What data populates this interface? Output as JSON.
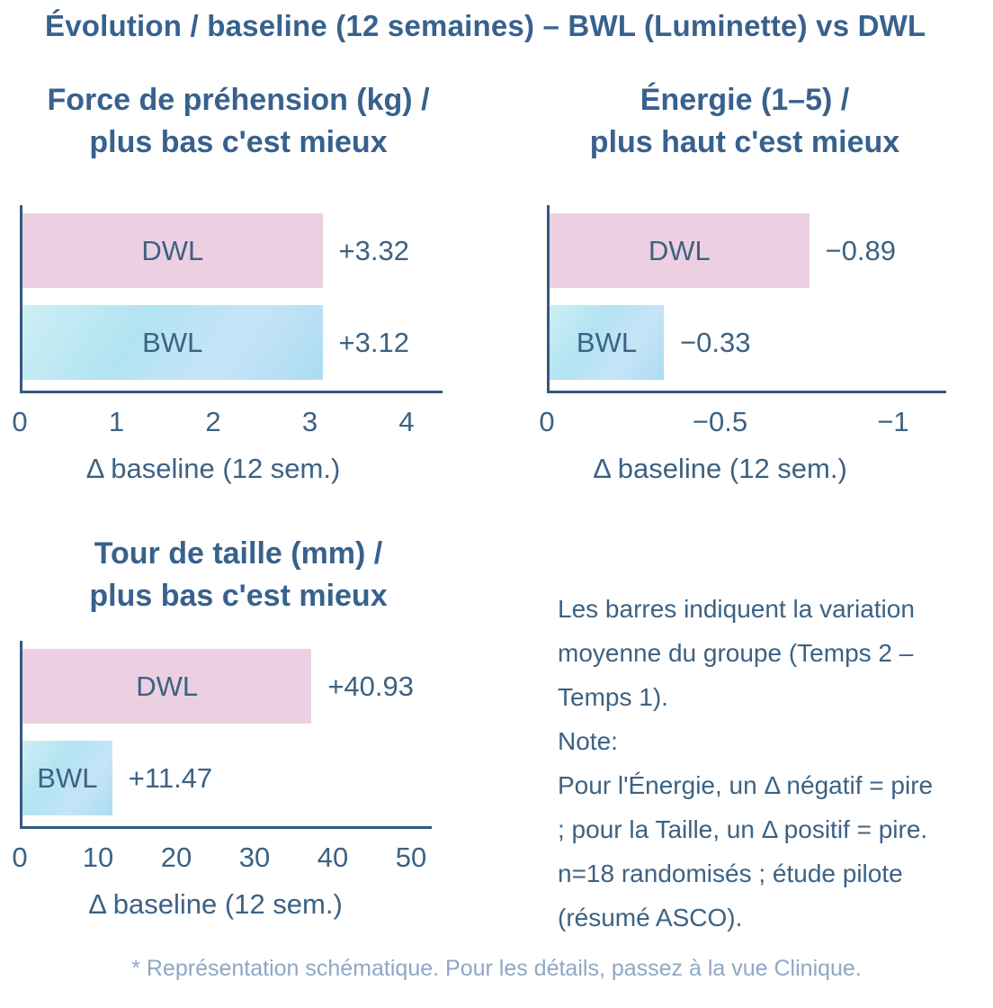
{
  "page": {
    "title": "Évolution / baseline (12 semaines) – BWL (Luminette) vs DWL",
    "footnote": "* Représentation schématique. Pour les détails, passez à la vue Clinique."
  },
  "colors": {
    "text": "#3c6283",
    "title": "#38618d",
    "axis": "#35597e",
    "footnote": "#8fa7c5",
    "dwl_bar": "#ecd0e2",
    "bwl_a": "#cdeff5",
    "bwl_b": "#b2e3f1",
    "bwl_c": "#c6e4f7",
    "bwl_d": "#abdcf2"
  },
  "notes": {
    "lines": [
      "Les barres indiquent la variation",
      "moyenne du groupe (Temps 2 –",
      "Temps 1).",
      "Note:",
      "Pour l'Énergie, un Δ négatif = pire",
      "; pour la Taille, un Δ positif = pire.",
      "n=18 randomisés ; étude pilote",
      "(résumé ASCO)."
    ]
  },
  "chart_data": [
    {
      "type": "bar",
      "orientation": "horizontal",
      "title_line1": "Force de préhension (kg) /",
      "title_line2": "plus bas c'est mieux",
      "categories": [
        "DWL",
        "BWL"
      ],
      "values": [
        3.32,
        3.12
      ],
      "value_labels": [
        "+3.32",
        "+3.12"
      ],
      "series_colors": [
        "#ecd0e2",
        "#b2e3f1"
      ],
      "xlim": [
        0,
        4
      ],
      "xticks": [
        "0",
        "1",
        "2",
        "3",
        "4"
      ],
      "xlabel": "Δ baseline (12 sem.)",
      "grid": false,
      "legend": false
    },
    {
      "type": "bar",
      "orientation": "horizontal",
      "title_line1": "Énergie (1–5) /",
      "title_line2": "plus haut c'est mieux",
      "categories": [
        "DWL",
        "BWL"
      ],
      "values": [
        -0.89,
        -0.33
      ],
      "value_labels": [
        "−0.89",
        "−0.33"
      ],
      "series_colors": [
        "#ecd0e2",
        "#b2e3f1"
      ],
      "xlim": [
        0,
        -1
      ],
      "xticks": [
        "0",
        "−0.5",
        "−1"
      ],
      "xlabel": "Δ baseline (12 sem.)",
      "grid": false,
      "legend": false
    },
    {
      "type": "bar",
      "orientation": "horizontal",
      "title_line1": "Tour de taille (mm) /",
      "title_line2": "plus bas c'est mieux",
      "categories": [
        "DWL",
        "BWL"
      ],
      "values": [
        40.93,
        11.47
      ],
      "value_labels": [
        "+40.93",
        "+11.47"
      ],
      "series_colors": [
        "#ecd0e2",
        "#b2e3f1"
      ],
      "xlim": [
        0,
        50
      ],
      "xticks": [
        "0",
        "10",
        "20",
        "30",
        "40",
        "50"
      ],
      "xlabel": "Δ baseline (12 sem.)",
      "grid": false,
      "legend": false
    }
  ]
}
